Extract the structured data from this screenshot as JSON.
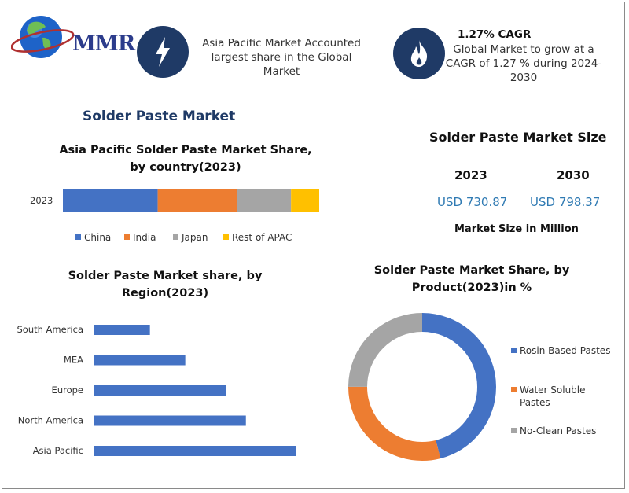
{
  "header": {
    "logo_text": "MMR",
    "highlight1": {
      "icon": "lightning-icon",
      "text": "Asia Pacific Market Accounted largest share in the Global Market"
    },
    "highlight2": {
      "icon": "flame-icon",
      "title": "1.27% CAGR",
      "text": "Global Market to grow at a CAGR of 1.27 % during 2024-2030"
    }
  },
  "main_title": "Solder Paste Market",
  "market_size": {
    "title": "Solder Paste Market Size",
    "years": [
      "2023",
      "2030"
    ],
    "values": [
      "USD 730.87",
      "USD 798.37"
    ],
    "unit_label": "Market Size in Million"
  },
  "colors": {
    "china": "#4472c4",
    "india": "#ed7d31",
    "japan": "#a5a5a5",
    "rest_apac": "#ffc000",
    "region_bar": "#4472c4",
    "badge": "#1f3a66",
    "title": "#1f3a66",
    "value": "#2f7ab3"
  },
  "chart_data": [
    {
      "type": "bar",
      "orientation": "horizontal-stacked",
      "title": "Asia Pacific Solder Paste Market Share, by country(2023)",
      "categories": [
        "2023"
      ],
      "series": [
        {
          "name": "China",
          "values": [
            37
          ]
        },
        {
          "name": "India",
          "values": [
            31
          ]
        },
        {
          "name": "Japan",
          "values": [
            21
          ]
        },
        {
          "name": "Rest of APAC",
          "values": [
            11
          ]
        }
      ],
      "legend": "bottom"
    },
    {
      "type": "bar",
      "orientation": "horizontal",
      "title": "Solder Paste Market share, by Region(2023)",
      "categories": [
        "South America",
        "MEA",
        "Europe",
        "North America",
        "Asia Pacific"
      ],
      "values": [
        11,
        18,
        26,
        30,
        40
      ],
      "grid": false
    },
    {
      "type": "pie",
      "subtype": "donut",
      "title": "Solder Paste Market Share, by Product(2023)in %",
      "categories": [
        "Rosin Based Pastes",
        "Water Soluble Pastes",
        "No-Clean Pastes"
      ],
      "values": [
        46,
        29,
        25
      ],
      "colors": [
        "#4472c4",
        "#ed7d31",
        "#a5a5a5"
      ],
      "legend": "right"
    }
  ]
}
